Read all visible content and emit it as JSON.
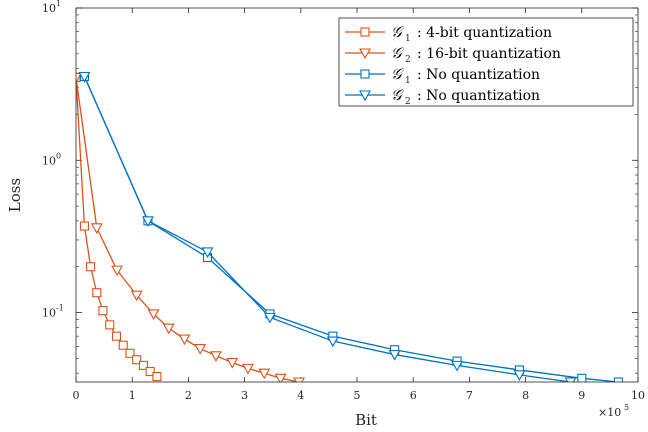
{
  "chart_data": {
    "type": "line",
    "title": "",
    "xlabel": "Bit",
    "ylabel": "Loss",
    "x_multiplier_label": "×10",
    "x_multiplier_exp": "5",
    "x_scale": 100000,
    "xlim": [
      0,
      1000000
    ],
    "ylim": [
      0.035,
      10
    ],
    "yscale": "log",
    "x_ticks": [
      0,
      1,
      2,
      3,
      4,
      5,
      6,
      7,
      8,
      9,
      10
    ],
    "x_tick_labels": [
      "0",
      "1",
      "2",
      "3",
      "4",
      "5",
      "6",
      "7",
      "8",
      "9",
      "10"
    ],
    "y_ticks": [
      {
        "value": 10,
        "base": "10",
        "exp": "1"
      },
      {
        "value": 1,
        "base": "10",
        "exp": "0"
      },
      {
        "value": 0.1,
        "base": "10",
        "exp": "-1"
      }
    ],
    "legend_position": "top-right",
    "series": [
      {
        "name": "G1 : 4-bit quantization",
        "legend_sym": "𝒢",
        "legend_sub": "1",
        "legend_text": ": 4-bit quantization",
        "color": "#d95319",
        "marker": "square",
        "x": [
          0,
          15000,
          26000,
          37000,
          48000,
          60000,
          72000,
          84000,
          96000,
          108000,
          120000,
          132000,
          144000
        ],
        "y": [
          3.5,
          0.37,
          0.2,
          0.135,
          0.103,
          0.083,
          0.07,
          0.061,
          0.054,
          0.049,
          0.045,
          0.041,
          0.038
        ]
      },
      {
        "name": "G2 : 16-bit quantization",
        "legend_sym": "𝒢",
        "legend_sub": "2",
        "legend_text": ": 16-bit quantization",
        "color": "#d95319",
        "marker": "triangle-down",
        "x": [
          0,
          37000,
          73000,
          108000,
          138000,
          165000,
          193000,
          221000,
          249000,
          278000,
          306000,
          335000,
          364000,
          397000
        ],
        "y": [
          3.5,
          0.36,
          0.19,
          0.13,
          0.098,
          0.079,
          0.067,
          0.058,
          0.052,
          0.047,
          0.043,
          0.04,
          0.037,
          0.035
        ]
      },
      {
        "name": "G1 : No quantization",
        "legend_sym": "𝒢",
        "legend_sub": "1",
        "legend_text": ": No quantization",
        "color": "#0072bd",
        "marker": "square",
        "x": [
          15000,
          128000,
          234000,
          345000,
          457000,
          567000,
          678000,
          789000,
          900000,
          965000
        ],
        "y": [
          3.55,
          0.4,
          0.23,
          0.098,
          0.07,
          0.057,
          0.048,
          0.042,
          0.037,
          0.035
        ]
      },
      {
        "name": "G2 : No quantization",
        "legend_sym": "𝒢",
        "legend_sub": "2",
        "legend_text": ": No quantization",
        "color": "#0072bd",
        "marker": "triangle-down",
        "x": [
          15000,
          128000,
          234000,
          345000,
          457000,
          567000,
          678000,
          789000,
          880000
        ],
        "y": [
          3.55,
          0.4,
          0.25,
          0.093,
          0.065,
          0.053,
          0.045,
          0.039,
          0.035
        ]
      }
    ]
  }
}
